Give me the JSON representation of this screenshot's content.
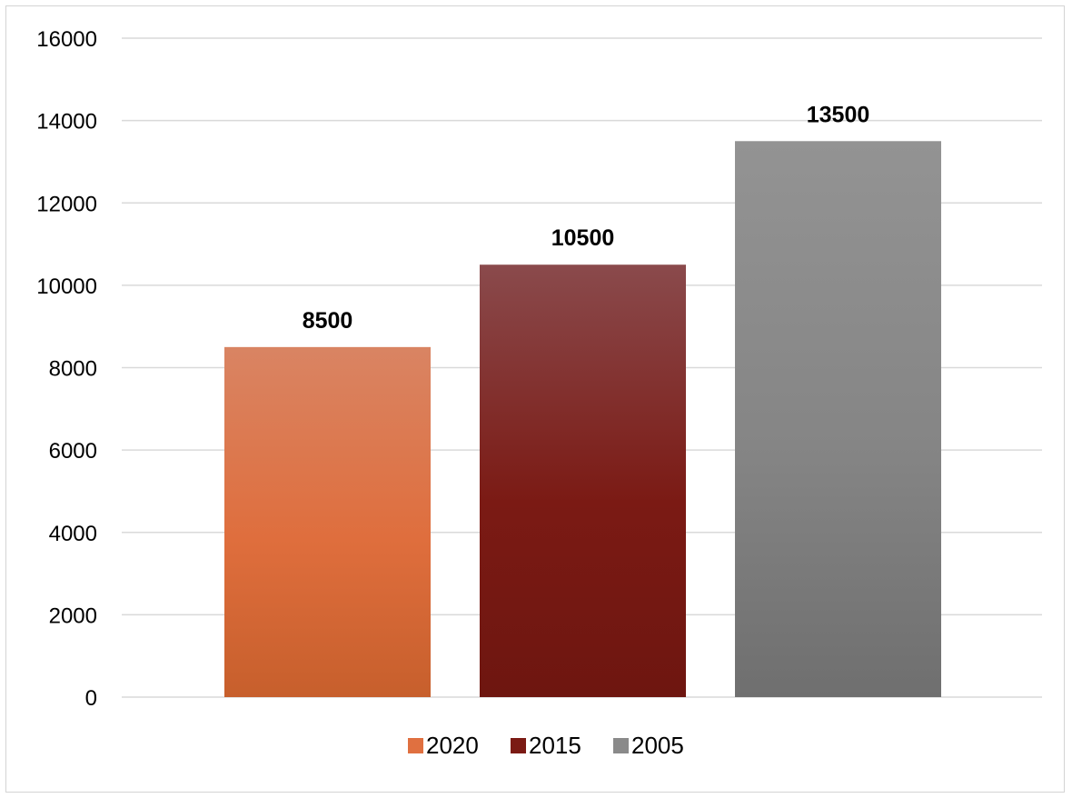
{
  "chart_data": {
    "type": "bar",
    "title": "",
    "xlabel": "",
    "ylabel": "",
    "ylim": [
      0,
      16000
    ],
    "yticks": [
      0,
      2000,
      4000,
      6000,
      8000,
      10000,
      12000,
      14000,
      16000
    ],
    "grid": true,
    "legend_position": "bottom",
    "series": [
      {
        "name": "2020",
        "value": 8500,
        "label": "8500",
        "color_top": "#d98463",
        "color_mid": "#df6e3d",
        "color_bottom": "#c75f2c",
        "legend_color": "#e07040"
      },
      {
        "name": "2015",
        "value": 10500,
        "label": "10500",
        "color_top": "#8a4a4c",
        "color_mid": "#7b1a14",
        "color_bottom": "#6e1610",
        "legend_color": "#7b1a14"
      },
      {
        "name": "2005",
        "value": 13500,
        "label": "13500",
        "color_top": "#939393",
        "color_mid": "#858585",
        "color_bottom": "#6f6f6f",
        "legend_color": "#8a8a8a"
      }
    ]
  }
}
